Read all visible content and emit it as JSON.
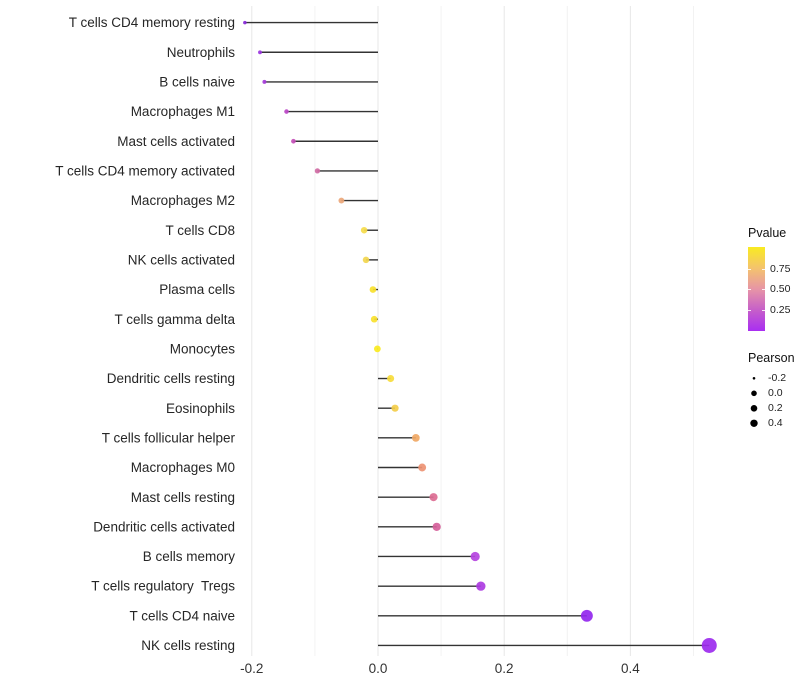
{
  "chart_data": {
    "type": "scatter",
    "variant": "lollipop (dot + stem, stems anchored at 0)",
    "title": "",
    "xlabel": "",
    "ylabel": "",
    "legend_position": "right",
    "grid": "vertical-only",
    "x_axis": {
      "tick_labels": [
        "-0.2",
        "0.0",
        "0.2",
        "0.4"
      ],
      "tick_values": [
        -0.2,
        0.0,
        0.2,
        0.4
      ],
      "minor_tick_values": [
        -0.1,
        0.1,
        0.3,
        0.5
      ],
      "xlim": [
        -0.219,
        0.536
      ]
    },
    "stem_origin": 0.0,
    "points": [
      {
        "label": "T cells CD4 memory resting",
        "pearson": -0.211,
        "color": "#8728D8"
      },
      {
        "label": "Neutrophils",
        "pearson": -0.187,
        "color": "#9A35E0"
      },
      {
        "label": "B cells naive",
        "pearson": -0.18,
        "color": "#A53BD9"
      },
      {
        "label": "Macrophages M1",
        "pearson": -0.145,
        "color": "#BC46C7"
      },
      {
        "label": "Mast cells activated",
        "pearson": -0.134,
        "color": "#C44FB9"
      },
      {
        "label": "T cells CD4 memory activated",
        "pearson": -0.096,
        "color": "#D06BA4"
      },
      {
        "label": "Macrophages M2",
        "pearson": -0.058,
        "color": "#EBA779"
      },
      {
        "label": "T cells CD8",
        "pearson": -0.022,
        "color": "#F6DC4B"
      },
      {
        "label": "NK cells activated",
        "pearson": -0.019,
        "color": "#F2D64E"
      },
      {
        "label": "Plasma cells",
        "pearson": -0.008,
        "color": "#F8E12E"
      },
      {
        "label": "T cells gamma delta",
        "pearson": -0.006,
        "color": "#F8E12E"
      },
      {
        "label": "Monocytes",
        "pearson": -0.001,
        "color": "#FAEA21"
      },
      {
        "label": "Dendritic cells resting",
        "pearson": 0.02,
        "color": "#F7DC3C"
      },
      {
        "label": "Eosinophils",
        "pearson": 0.027,
        "color": "#F3CD4A"
      },
      {
        "label": "T cells follicular helper",
        "pearson": 0.06,
        "color": "#F0A865"
      },
      {
        "label": "Macrophages M0",
        "pearson": 0.07,
        "color": "#ED9373"
      },
      {
        "label": "Mast cells resting",
        "pearson": 0.088,
        "color": "#DC6C92"
      },
      {
        "label": "Dendritic cells activated",
        "pearson": 0.093,
        "color": "#D55F9A"
      },
      {
        "label": "B cells memory",
        "pearson": 0.154,
        "color": "#B544E0"
      },
      {
        "label": "T cells regulatory  Tregs",
        "pearson": 0.163,
        "color": "#AC3BE2"
      },
      {
        "label": "T cells CD4 naive",
        "pearson": 0.331,
        "color": "#9227EE"
      },
      {
        "label": "NK cells resting",
        "pearson": 0.525,
        "color": "#9C2BEE"
      }
    ]
  },
  "legend": {
    "pvalue": {
      "title": "Pvalue",
      "tick_labels": [
        "0.75",
        "0.50",
        "0.25"
      ],
      "tick_fractions_from_top": [
        0.26,
        0.505,
        0.755
      ],
      "gradient_top_to_bottom": [
        "#F9EB21",
        "#F4C36D",
        "#E795A6",
        "#C65FC9",
        "#A92EF2"
      ]
    },
    "pearson": {
      "title": "Pearson",
      "dot_color": "#000000",
      "entries": [
        {
          "label": "-0.2",
          "radius": 1.3
        },
        {
          "label": "0.0",
          "radius": 2.8
        },
        {
          "label": "0.2",
          "radius": 3.3
        },
        {
          "label": "0.4",
          "radius": 3.7
        }
      ]
    }
  },
  "colors": {
    "background": "#FFFFFF",
    "stem": "#333333",
    "grid_major": "#E7E7E7",
    "grid_minor": "#F2F2F2",
    "axis_tick_text": "#333333",
    "category_text": "#262626"
  }
}
